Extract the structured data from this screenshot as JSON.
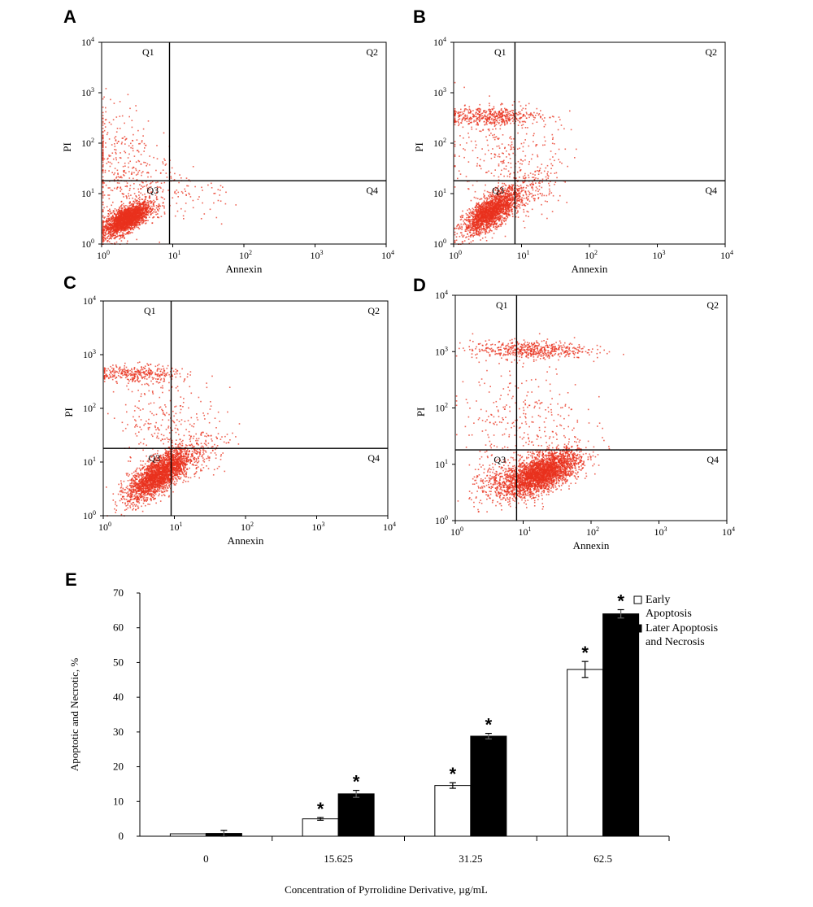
{
  "chart_data": [
    {
      "type": "scatter",
      "panel": "A",
      "xlabel": "Annexin",
      "ylabel": "PI",
      "scale": "log",
      "xlim": [
        1,
        10000
      ],
      "ylim": [
        1,
        10000
      ],
      "x_ticks": [
        "10",
        "10",
        "10",
        "10",
        "10"
      ],
      "tick_exponents": [
        "0",
        "1",
        "2",
        "3",
        "4"
      ],
      "y_ticks": [
        "10",
        "10",
        "10",
        "10",
        "10"
      ],
      "gate": {
        "x": 9,
        "y": 18
      },
      "quadrants": [
        "Q1",
        "Q2",
        "Q3",
        "Q4"
      ],
      "dot_color": "#e8321e",
      "clusters": [
        {
          "count": 2400,
          "cx": 2.2,
          "cy": 3.2,
          "sx": 0.16,
          "sy": 0.16,
          "corr": 0.65
        },
        {
          "count": 300,
          "cx": 1.5,
          "cy": 55,
          "sx": 0.28,
          "sy": 0.55,
          "corr": 0
        },
        {
          "count": 180,
          "cx": 5,
          "cy": 10,
          "sx": 0.3,
          "sy": 0.35,
          "corr": 0
        },
        {
          "count": 40,
          "cx": 25,
          "cy": 8,
          "sx": 0.3,
          "sy": 0.25,
          "corr": 0
        }
      ]
    },
    {
      "type": "scatter",
      "panel": "B",
      "xlabel": "Annexin",
      "ylabel": "PI",
      "scale": "log",
      "xlim": [
        1,
        10000
      ],
      "ylim": [
        1,
        10000
      ],
      "x_ticks": [
        "10",
        "10",
        "10",
        "10",
        "10"
      ],
      "tick_exponents": [
        "0",
        "1",
        "2",
        "3",
        "4"
      ],
      "y_ticks": [
        "10",
        "10",
        "10",
        "10",
        "10"
      ],
      "gate": {
        "x": 8,
        "y": 18
      },
      "quadrants": [
        "Q1",
        "Q2",
        "Q3",
        "Q4"
      ],
      "dot_color": "#e8321e",
      "clusters": [
        {
          "count": 2100,
          "cx": 3.5,
          "cy": 4.5,
          "sx": 0.2,
          "sy": 0.22,
          "corr": 0.7
        },
        {
          "count": 500,
          "cx": 3.5,
          "cy": 350,
          "sx": 0.35,
          "sy": 0.09,
          "corr": 0
        },
        {
          "count": 250,
          "cx": 6,
          "cy": 60,
          "sx": 0.4,
          "sy": 0.45,
          "corr": 0
        },
        {
          "count": 200,
          "cx": 12,
          "cy": 12,
          "sx": 0.25,
          "sy": 0.3,
          "corr": 0.5
        }
      ]
    },
    {
      "type": "scatter",
      "panel": "C",
      "xlabel": "Annexin",
      "ylabel": "PI",
      "scale": "log",
      "xlim": [
        1,
        10000
      ],
      "ylim": [
        1,
        10000
      ],
      "x_ticks": [
        "10",
        "10",
        "10",
        "10",
        "10"
      ],
      "tick_exponents": [
        "0",
        "1",
        "2",
        "3",
        "4"
      ],
      "y_ticks": [
        "10",
        "10",
        "10",
        "10",
        "10"
      ],
      "gate": {
        "x": 9,
        "y": 18
      },
      "quadrants": [
        "Q1",
        "Q2",
        "Q3",
        "Q4"
      ],
      "dot_color": "#e8321e",
      "clusters": [
        {
          "count": 2600,
          "cx": 6,
          "cy": 6,
          "sx": 0.22,
          "sy": 0.24,
          "corr": 0.72
        },
        {
          "count": 350,
          "cx": 2.8,
          "cy": 450,
          "sx": 0.3,
          "sy": 0.08,
          "corr": 0
        },
        {
          "count": 250,
          "cx": 8,
          "cy": 60,
          "sx": 0.35,
          "sy": 0.45,
          "corr": 0
        },
        {
          "count": 150,
          "cx": 20,
          "cy": 15,
          "sx": 0.25,
          "sy": 0.25,
          "corr": 0.4
        }
      ]
    },
    {
      "type": "scatter",
      "panel": "D",
      "xlabel": "Annexin",
      "ylabel": "PI",
      "scale": "log",
      "xlim": [
        1,
        10000
      ],
      "ylim": [
        1,
        10000
      ],
      "x_ticks": [
        "10",
        "10",
        "10",
        "10",
        "10"
      ],
      "tick_exponents": [
        "0",
        "1",
        "2",
        "3",
        "4"
      ],
      "y_ticks": [
        "10",
        "10",
        "10",
        "10",
        "10"
      ],
      "gate": {
        "x": 8,
        "y": 18
      },
      "quadrants": [
        "Q1",
        "Q2",
        "Q3",
        "Q4"
      ],
      "dot_color": "#e8321e",
      "clusters": [
        {
          "count": 3000,
          "cx": 18,
          "cy": 7,
          "sx": 0.28,
          "sy": 0.2,
          "corr": 0.6
        },
        {
          "count": 550,
          "cx": 12,
          "cy": 1100,
          "sx": 0.42,
          "sy": 0.08,
          "corr": 0
        },
        {
          "count": 300,
          "cx": 10,
          "cy": 60,
          "sx": 0.45,
          "sy": 0.5,
          "corr": 0
        },
        {
          "count": 200,
          "cx": 4,
          "cy": 5,
          "sx": 0.2,
          "sy": 0.2,
          "corr": 0.3
        }
      ]
    },
    {
      "type": "bar",
      "panel": "E",
      "categories": [
        "0",
        "15.625",
        "31.25",
        "62.5"
      ],
      "series": [
        {
          "name": "Early Apoptosis",
          "values": [
            0.7,
            5.0,
            14.6,
            48.0
          ],
          "errors": [
            0.0,
            0.4,
            0.8,
            2.3
          ],
          "significant": [
            false,
            true,
            true,
            true
          ],
          "fill": "#ffffff"
        },
        {
          "name": "Later Apoptosis and Necrosis",
          "values": [
            0.8,
            12.2,
            28.8,
            64.0
          ],
          "errors": [
            0.9,
            1.0,
            0.8,
            1.2
          ],
          "significant": [
            false,
            true,
            true,
            true
          ],
          "fill": "#000000"
        }
      ],
      "legend_lines": [
        [
          "Early",
          "Apoptosis"
        ],
        [
          "Later Apoptosis",
          "and Necrosis"
        ]
      ],
      "significance_marker": "*",
      "xlabel": "Concentration of Pyrrolidine Derivative, µg/mL",
      "ylabel": "Apoptotic and Necrotic, %",
      "ylim": [
        0,
        70
      ],
      "yticks": [
        "0",
        "10",
        "20",
        "30",
        "40",
        "50",
        "60",
        "70"
      ],
      "legend_position": "top-right",
      "grid": false
    }
  ]
}
